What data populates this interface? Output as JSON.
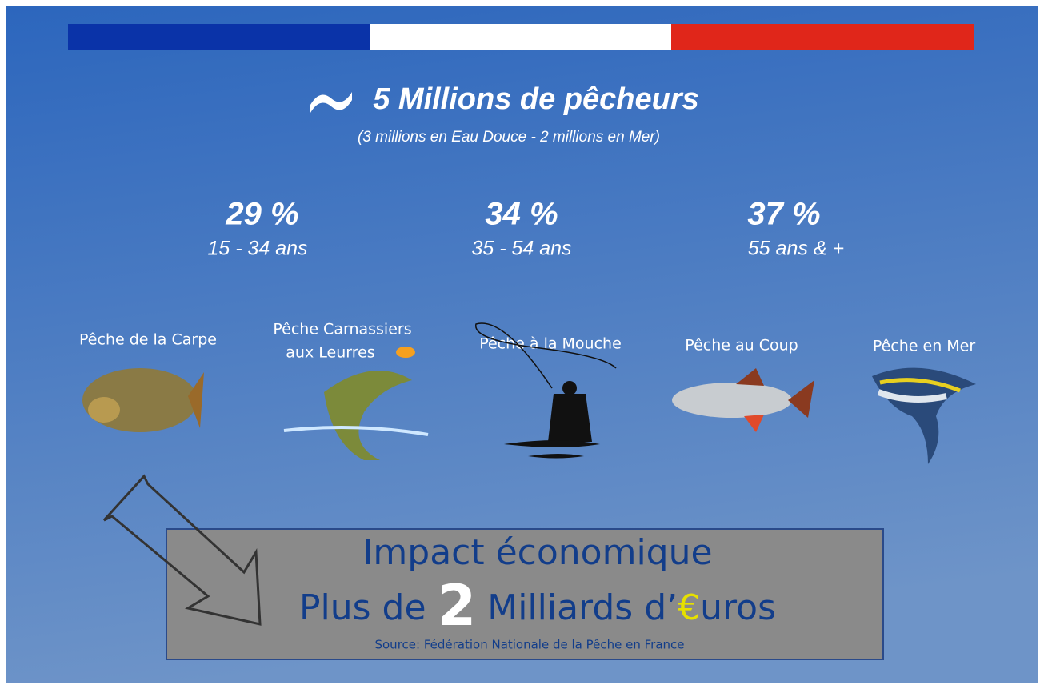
{
  "header": {
    "title": "5 Millions de pêcheurs",
    "subtitle": "(3 millions en Eau Douce - 2 millions en Mer)"
  },
  "age_groups": [
    {
      "share": "29 %",
      "label": "15 - 34 ans"
    },
    {
      "share": "34 %",
      "label": "35 - 54 ans"
    },
    {
      "share": "37 %",
      "label": "55 ans & +"
    }
  ],
  "fishing_types": [
    {
      "label": "Pêche de la Carpe"
    },
    {
      "label_lines": [
        "Pêche Carnassiers",
        "aux Leurres"
      ]
    },
    {
      "label": "Pêche à la Mouche"
    },
    {
      "label": "Pêche au Coup"
    },
    {
      "label": "Pêche en Mer"
    }
  ],
  "impact": {
    "title": "Impact économique",
    "line_parts": [
      "Plus de ",
      "2",
      " Milliards d’",
      "€",
      "uros"
    ],
    "source": "Source:  Fédération Nationale de la Pêche en France"
  }
}
